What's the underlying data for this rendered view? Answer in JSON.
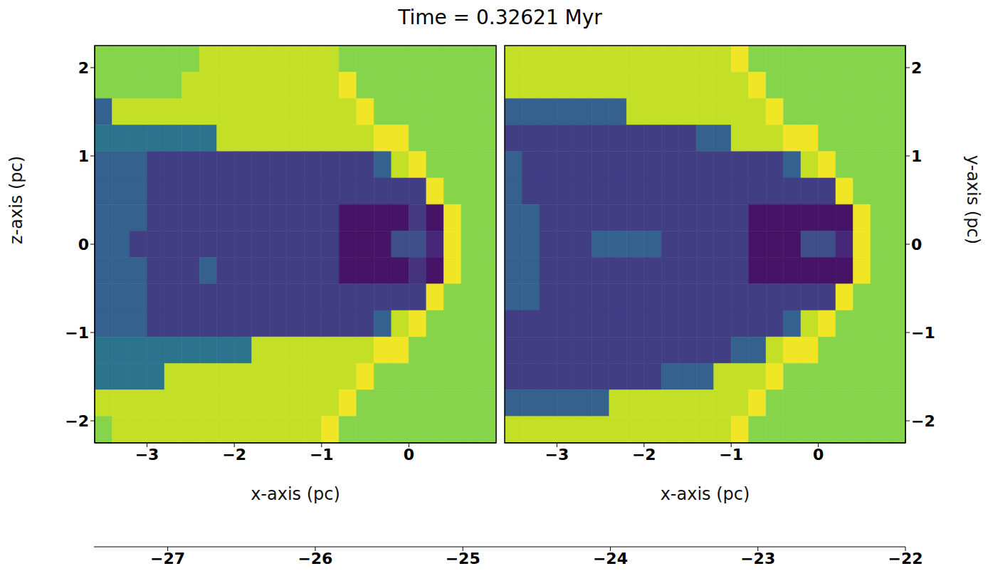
{
  "title": "Time = 0.32621 Myr",
  "colorbar": {
    "range": [
      -27.5,
      -22
    ],
    "ticks": [
      {
        "value": -27,
        "label": "−27"
      },
      {
        "value": -26,
        "label": "−26"
      },
      {
        "value": -25,
        "label": "−25"
      },
      {
        "value": -24,
        "label": "−24"
      },
      {
        "value": -23,
        "label": "−23"
      },
      {
        "value": -22,
        "label": "−22"
      }
    ]
  },
  "chart_data": [
    {
      "type": "heatmap",
      "x_label": "x-axis (pc)",
      "y_label": "z-axis (pc)",
      "xlim": [
        -3.6,
        1.0
      ],
      "ylim": [
        -2.25,
        2.25
      ],
      "xticks": [
        {
          "value": -3,
          "label": "−3"
        },
        {
          "value": -2,
          "label": "−2"
        },
        {
          "value": -1,
          "label": "−1"
        },
        0
      ],
      "yticks": [
        {
          "value": -2,
          "label": "−2"
        },
        {
          "value": -1,
          "label": "−1"
        },
        0,
        1,
        2
      ],
      "x": [
        -3.5,
        -3.3,
        -3.1,
        -2.9,
        -2.7,
        -2.5,
        -2.3,
        -2.1,
        -1.9,
        -1.7,
        -1.5,
        -1.3,
        -1.1,
        -0.9,
        -0.7,
        -0.5,
        -0.3,
        -0.1,
        0.1,
        0.3,
        0.5,
        0.7,
        0.9
      ],
      "y": [
        2.1,
        1.8,
        1.5,
        1.2,
        0.9,
        0.6,
        0.3,
        0.0,
        -0.3,
        -0.6,
        -0.9,
        -1.2,
        -1.5,
        -1.8,
        -2.1
      ],
      "cells": [
        [
          -23.0,
          -23.0,
          -23.0,
          -23.0,
          -23.0,
          -23.0,
          -22.5,
          -22.5,
          -22.5,
          -22.5,
          -22.5,
          -22.5,
          -22.5,
          -22.5,
          -23.0,
          -23.0,
          -23.0,
          -23.0,
          -23.0,
          -23.0,
          -23.0,
          -23.0,
          -23.0
        ],
        [
          -23.0,
          -23.0,
          -23.0,
          -23.0,
          -23.0,
          -22.5,
          -22.5,
          -22.5,
          -22.5,
          -22.5,
          -22.5,
          -22.5,
          -22.5,
          -22.5,
          -22.1,
          -23.0,
          -23.0,
          -23.0,
          -23.0,
          -23.0,
          -23.0,
          -23.0,
          -23.0
        ],
        [
          -25.8,
          -22.5,
          -22.5,
          -22.5,
          -22.5,
          -22.5,
          -22.5,
          -22.5,
          -22.5,
          -22.5,
          -22.5,
          -22.5,
          -22.5,
          -22.5,
          -22.5,
          -22.1,
          -23.0,
          -23.0,
          -23.0,
          -23.0,
          -23.0,
          -23.0,
          -23.0
        ],
        [
          -25.4,
          -25.4,
          -25.4,
          -25.4,
          -25.4,
          -25.4,
          -25.4,
          -22.5,
          -22.5,
          -22.5,
          -22.5,
          -22.5,
          -22.5,
          -22.5,
          -22.5,
          -22.5,
          -22.1,
          -22.1,
          -23.0,
          -23.0,
          -23.0,
          -23.0,
          -23.0
        ],
        [
          -25.8,
          -25.8,
          -25.8,
          -26.5,
          -26.5,
          -26.5,
          -26.5,
          -26.5,
          -26.5,
          -26.5,
          -26.5,
          -26.5,
          -26.5,
          -26.5,
          -26.5,
          -26.5,
          -25.8,
          -22.5,
          -22.1,
          -23.0,
          -23.0,
          -23.0,
          -23.0
        ],
        [
          -25.8,
          -25.8,
          -25.8,
          -26.5,
          -26.5,
          -26.5,
          -26.5,
          -26.5,
          -26.5,
          -26.5,
          -26.5,
          -26.5,
          -26.5,
          -26.5,
          -26.5,
          -26.5,
          -26.5,
          -26.5,
          -26.5,
          -22.1,
          -23.0,
          -23.0,
          -23.0
        ],
        [
          -25.8,
          -25.8,
          -25.8,
          -26.5,
          -26.5,
          -26.5,
          -26.5,
          -26.5,
          -26.5,
          -26.5,
          -26.5,
          -26.5,
          -26.5,
          -26.5,
          -27.2,
          -27.2,
          -27.2,
          -27.2,
          -26.6,
          -27.2,
          -22.1,
          -23.0,
          -23.0
        ],
        [
          -25.8,
          -25.8,
          -26.5,
          -26.5,
          -26.5,
          -26.5,
          -26.5,
          -26.5,
          -26.5,
          -26.5,
          -26.5,
          -26.5,
          -26.5,
          -26.5,
          -27.2,
          -27.2,
          -27.2,
          -26.2,
          -26.2,
          -26.9,
          -22.1,
          -23.0,
          -23.0
        ],
        [
          -25.8,
          -25.8,
          -25.8,
          -26.5,
          -26.5,
          -26.5,
          -25.8,
          -26.5,
          -26.5,
          -26.5,
          -26.5,
          -26.5,
          -26.5,
          -26.5,
          -27.2,
          -27.2,
          -27.2,
          -27.2,
          -26.7,
          -27.2,
          -22.1,
          -23.0,
          -23.0
        ],
        [
          -25.8,
          -25.8,
          -25.8,
          -26.5,
          -26.5,
          -26.5,
          -26.5,
          -26.5,
          -26.5,
          -26.5,
          -26.5,
          -26.5,
          -26.5,
          -26.5,
          -26.5,
          -26.5,
          -26.5,
          -26.5,
          -26.5,
          -22.1,
          -23.0,
          -23.0,
          -23.0
        ],
        [
          -25.8,
          -25.8,
          -25.8,
          -26.5,
          -26.5,
          -26.5,
          -26.5,
          -26.5,
          -26.5,
          -26.5,
          -26.5,
          -26.5,
          -26.5,
          -26.5,
          -26.5,
          -26.5,
          -25.8,
          -22.5,
          -22.1,
          -23.0,
          -23.0,
          -23.0,
          -23.0
        ],
        [
          -25.4,
          -25.4,
          -25.4,
          -25.4,
          -25.4,
          -25.4,
          -25.4,
          -25.4,
          -25.4,
          -22.5,
          -22.5,
          -22.5,
          -22.5,
          -22.5,
          -22.5,
          -22.5,
          -22.1,
          -22.1,
          -23.0,
          -23.0,
          -23.0,
          -23.0,
          -23.0
        ],
        [
          -25.4,
          -25.4,
          -25.4,
          -25.4,
          -22.5,
          -22.5,
          -22.5,
          -22.5,
          -22.5,
          -22.5,
          -22.5,
          -22.5,
          -22.5,
          -22.5,
          -22.5,
          -22.1,
          -23.0,
          -23.0,
          -23.0,
          -23.0,
          -23.0,
          -23.0,
          -23.0
        ],
        [
          -22.5,
          -22.5,
          -22.5,
          -22.5,
          -22.5,
          -22.5,
          -22.5,
          -22.5,
          -22.5,
          -22.5,
          -22.5,
          -22.5,
          -22.5,
          -22.5,
          -22.1,
          -23.0,
          -23.0,
          -23.0,
          -23.0,
          -23.0,
          -23.0,
          -23.0,
          -23.0
        ],
        [
          -23.0,
          -22.5,
          -22.5,
          -22.5,
          -22.5,
          -22.5,
          -22.5,
          -22.5,
          -22.5,
          -22.5,
          -22.5,
          -22.5,
          -22.5,
          -22.1,
          -23.0,
          -23.0,
          -23.0,
          -23.0,
          -23.0,
          -23.0,
          -23.0,
          -23.0,
          -23.0
        ]
      ]
    },
    {
      "type": "heatmap",
      "x_label": "x-axis (pc)",
      "y_label": "y-axis (pc)",
      "xlim": [
        -3.6,
        1.0
      ],
      "ylim": [
        -2.25,
        2.25
      ],
      "xticks": [
        {
          "value": -3,
          "label": "−3"
        },
        {
          "value": -2,
          "label": "−2"
        },
        {
          "value": -1,
          "label": "−1"
        },
        0
      ],
      "yticks": [
        {
          "value": -2,
          "label": "−2"
        },
        {
          "value": -1,
          "label": "−1"
        },
        0,
        1,
        2
      ],
      "x": [
        -3.5,
        -3.3,
        -3.1,
        -2.9,
        -2.7,
        -2.5,
        -2.3,
        -2.1,
        -1.9,
        -1.7,
        -1.5,
        -1.3,
        -1.1,
        -0.9,
        -0.7,
        -0.5,
        -0.3,
        -0.1,
        0.1,
        0.3,
        0.5,
        0.7,
        0.9
      ],
      "y": [
        2.1,
        1.8,
        1.5,
        1.2,
        0.9,
        0.6,
        0.3,
        0.0,
        -0.3,
        -0.6,
        -0.9,
        -1.2,
        -1.5,
        -1.8,
        -2.1
      ],
      "cells": [
        [
          -22.5,
          -22.5,
          -22.5,
          -22.5,
          -22.5,
          -22.5,
          -22.5,
          -22.5,
          -22.5,
          -22.5,
          -22.5,
          -22.5,
          -22.5,
          -22.1,
          -23.0,
          -23.0,
          -23.0,
          -23.0,
          -23.0,
          -23.0,
          -23.0,
          -23.0,
          -23.0
        ],
        [
          -22.5,
          -22.5,
          -22.5,
          -22.5,
          -22.5,
          -22.5,
          -22.5,
          -22.5,
          -22.5,
          -22.5,
          -22.5,
          -22.5,
          -22.5,
          -22.5,
          -22.1,
          -23.0,
          -23.0,
          -23.0,
          -23.0,
          -23.0,
          -23.0,
          -23.0,
          -23.0
        ],
        [
          -25.8,
          -25.8,
          -25.8,
          -25.8,
          -25.8,
          -25.8,
          -25.8,
          -22.5,
          -22.5,
          -22.5,
          -22.5,
          -22.5,
          -22.5,
          -22.5,
          -22.5,
          -22.1,
          -23.0,
          -23.0,
          -23.0,
          -23.0,
          -23.0,
          -23.0,
          -23.0
        ],
        [
          -26.5,
          -26.5,
          -26.5,
          -26.5,
          -26.5,
          -26.5,
          -26.5,
          -26.5,
          -26.5,
          -26.5,
          -26.5,
          -25.8,
          -25.8,
          -22.5,
          -22.5,
          -22.5,
          -22.1,
          -22.1,
          -23.0,
          -23.0,
          -23.0,
          -23.0,
          -23.0
        ],
        [
          -25.8,
          -26.5,
          -26.5,
          -26.5,
          -26.5,
          -26.5,
          -26.5,
          -26.5,
          -26.5,
          -26.5,
          -26.5,
          -26.5,
          -26.5,
          -26.5,
          -26.5,
          -26.5,
          -25.8,
          -22.5,
          -22.1,
          -23.0,
          -23.0,
          -23.0,
          -23.0
        ],
        [
          -25.8,
          -26.5,
          -26.5,
          -26.5,
          -26.5,
          -26.5,
          -26.5,
          -26.5,
          -26.5,
          -26.5,
          -26.5,
          -26.5,
          -26.5,
          -26.5,
          -26.5,
          -26.5,
          -26.5,
          -26.5,
          -26.5,
          -22.1,
          -23.0,
          -23.0,
          -23.0
        ],
        [
          -25.8,
          -25.8,
          -26.5,
          -26.5,
          -26.5,
          -26.5,
          -26.5,
          -26.5,
          -26.5,
          -26.5,
          -26.5,
          -26.5,
          -26.5,
          -26.5,
          -27.2,
          -27.2,
          -27.2,
          -27.2,
          -27.2,
          -27.2,
          -22.1,
          -23.0,
          -23.0
        ],
        [
          -25.8,
          -25.8,
          -26.5,
          -26.5,
          -26.5,
          -25.8,
          -25.8,
          -25.8,
          -25.8,
          -26.5,
          -26.5,
          -26.5,
          -26.5,
          -26.5,
          -27.2,
          -27.2,
          -27.2,
          -26.2,
          -26.2,
          -26.9,
          -22.1,
          -23.0,
          -23.0
        ],
        [
          -25.8,
          -25.8,
          -26.5,
          -26.5,
          -26.5,
          -26.5,
          -26.5,
          -26.5,
          -26.5,
          -26.5,
          -26.5,
          -26.5,
          -26.5,
          -26.5,
          -27.2,
          -27.2,
          -27.2,
          -27.2,
          -27.2,
          -27.2,
          -22.1,
          -23.0,
          -23.0
        ],
        [
          -25.8,
          -25.8,
          -26.5,
          -26.5,
          -26.5,
          -26.5,
          -26.5,
          -26.5,
          -26.5,
          -26.5,
          -26.5,
          -26.5,
          -26.5,
          -26.5,
          -26.5,
          -26.5,
          -26.5,
          -26.5,
          -26.5,
          -22.1,
          -23.0,
          -23.0,
          -23.0
        ],
        [
          -26.5,
          -26.5,
          -26.5,
          -26.5,
          -26.5,
          -26.5,
          -26.5,
          -26.5,
          -26.5,
          -26.5,
          -26.5,
          -26.5,
          -26.5,
          -26.5,
          -26.5,
          -26.5,
          -25.8,
          -22.5,
          -22.1,
          -23.0,
          -23.0,
          -23.0,
          -23.0
        ],
        [
          -26.5,
          -26.5,
          -26.5,
          -26.5,
          -26.5,
          -26.5,
          -26.5,
          -26.5,
          -26.5,
          -26.5,
          -26.5,
          -26.5,
          -26.5,
          -25.8,
          -25.8,
          -22.5,
          -22.1,
          -22.1,
          -23.0,
          -23.0,
          -23.0,
          -23.0,
          -23.0
        ],
        [
          -26.5,
          -26.5,
          -26.5,
          -26.5,
          -26.5,
          -26.5,
          -26.5,
          -26.5,
          -26.5,
          -25.8,
          -25.8,
          -25.8,
          -22.5,
          -22.5,
          -22.5,
          -22.1,
          -23.0,
          -23.0,
          -23.0,
          -23.0,
          -23.0,
          -23.0,
          -23.0
        ],
        [
          -25.8,
          -25.8,
          -25.8,
          -25.8,
          -25.8,
          -25.8,
          -22.5,
          -22.5,
          -22.5,
          -22.5,
          -22.5,
          -22.5,
          -22.5,
          -22.5,
          -22.1,
          -23.0,
          -23.0,
          -23.0,
          -23.0,
          -23.0,
          -23.0,
          -23.0,
          -23.0
        ],
        [
          -22.5,
          -22.5,
          -22.5,
          -22.5,
          -22.5,
          -22.5,
          -22.5,
          -22.5,
          -22.5,
          -22.5,
          -22.5,
          -22.5,
          -22.5,
          -22.1,
          -23.0,
          -23.0,
          -23.0,
          -23.0,
          -23.0,
          -23.0,
          -23.0,
          -23.0,
          -23.0
        ]
      ]
    }
  ]
}
